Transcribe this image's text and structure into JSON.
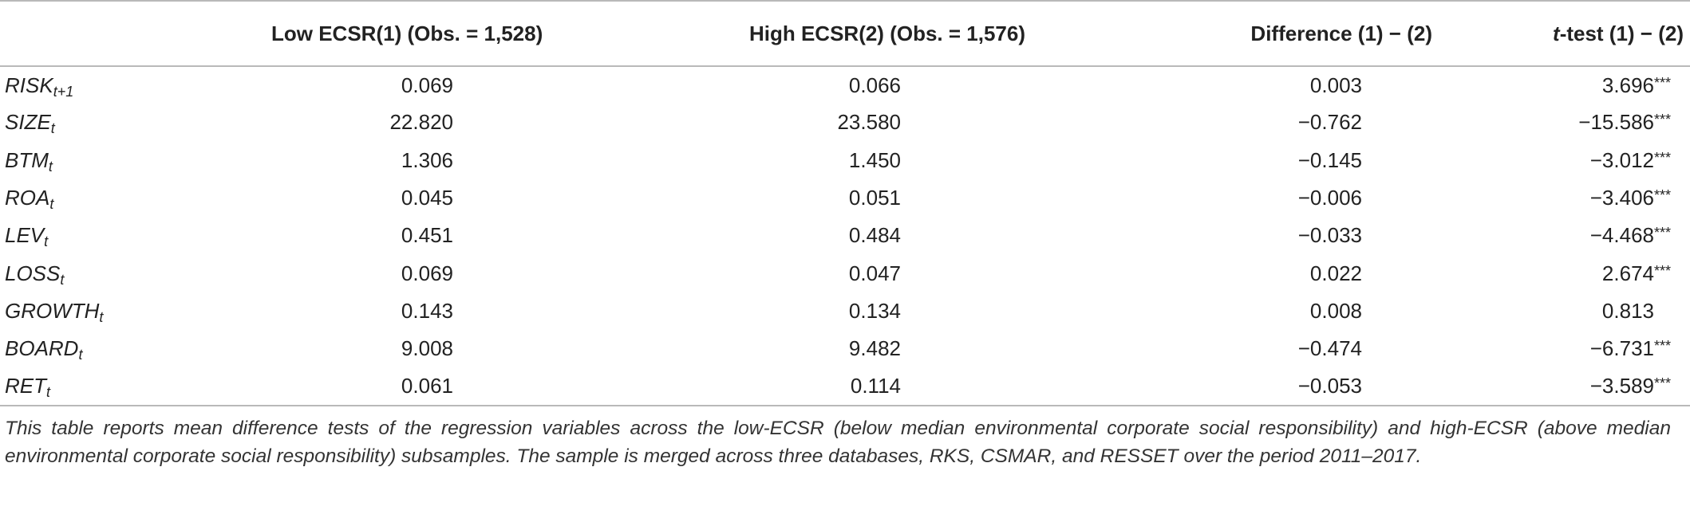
{
  "table": {
    "headers": {
      "variable": "",
      "low": "Low ECSR(1) (Obs. = 1,528)",
      "high": "High ECSR(2) (Obs. = 1,576)",
      "difference": "Difference (1) − (2)",
      "ttest_t": "t",
      "ttest_rest": "-test (1) − (2)"
    },
    "rows": [
      {
        "var": "RISK",
        "sub": "t+1",
        "low": "0.069",
        "high": "0.066",
        "diff": "0.003",
        "t": "3.696",
        "sig": "***"
      },
      {
        "var": "SIZE",
        "sub": "t",
        "low": "22.820",
        "high": "23.580",
        "diff": "−0.762",
        "t": "−15.586",
        "sig": "***"
      },
      {
        "var": "BTM",
        "sub": "t",
        "low": "1.306",
        "high": "1.450",
        "diff": "−0.145",
        "t": "−3.012",
        "sig": "***"
      },
      {
        "var": "ROA",
        "sub": "t",
        "low": "0.045",
        "high": "0.051",
        "diff": "−0.006",
        "t": "−3.406",
        "sig": "***"
      },
      {
        "var": "LEV",
        "sub": "t",
        "low": "0.451",
        "high": "0.484",
        "diff": "−0.033",
        "t": "−4.468",
        "sig": "***"
      },
      {
        "var": "LOSS",
        "sub": "t",
        "low": "0.069",
        "high": "0.047",
        "diff": "0.022",
        "t": "2.674",
        "sig": "***"
      },
      {
        "var": "GROWTH",
        "sub": "t",
        "low": "0.143",
        "high": "0.134",
        "diff": "0.008",
        "t": "0.813",
        "sig": ""
      },
      {
        "var": "BOARD",
        "sub": "t",
        "low": "9.008",
        "high": "9.482",
        "diff": "−0.474",
        "t": "−6.731",
        "sig": "***"
      },
      {
        "var": "RET",
        "sub": "t",
        "low": "0.061",
        "high": "0.114",
        "diff": "−0.053",
        "t": "−3.589",
        "sig": "***"
      }
    ]
  },
  "note": "This table reports mean difference tests of the regression variables across the low-ECSR (below median environmental corporate social responsibility) and high-ECSR (above median environmental corporate social responsibility) subsamples. The sample is merged across three databases, RKS, CSMAR, and RESSET over the period 2011–2017."
}
